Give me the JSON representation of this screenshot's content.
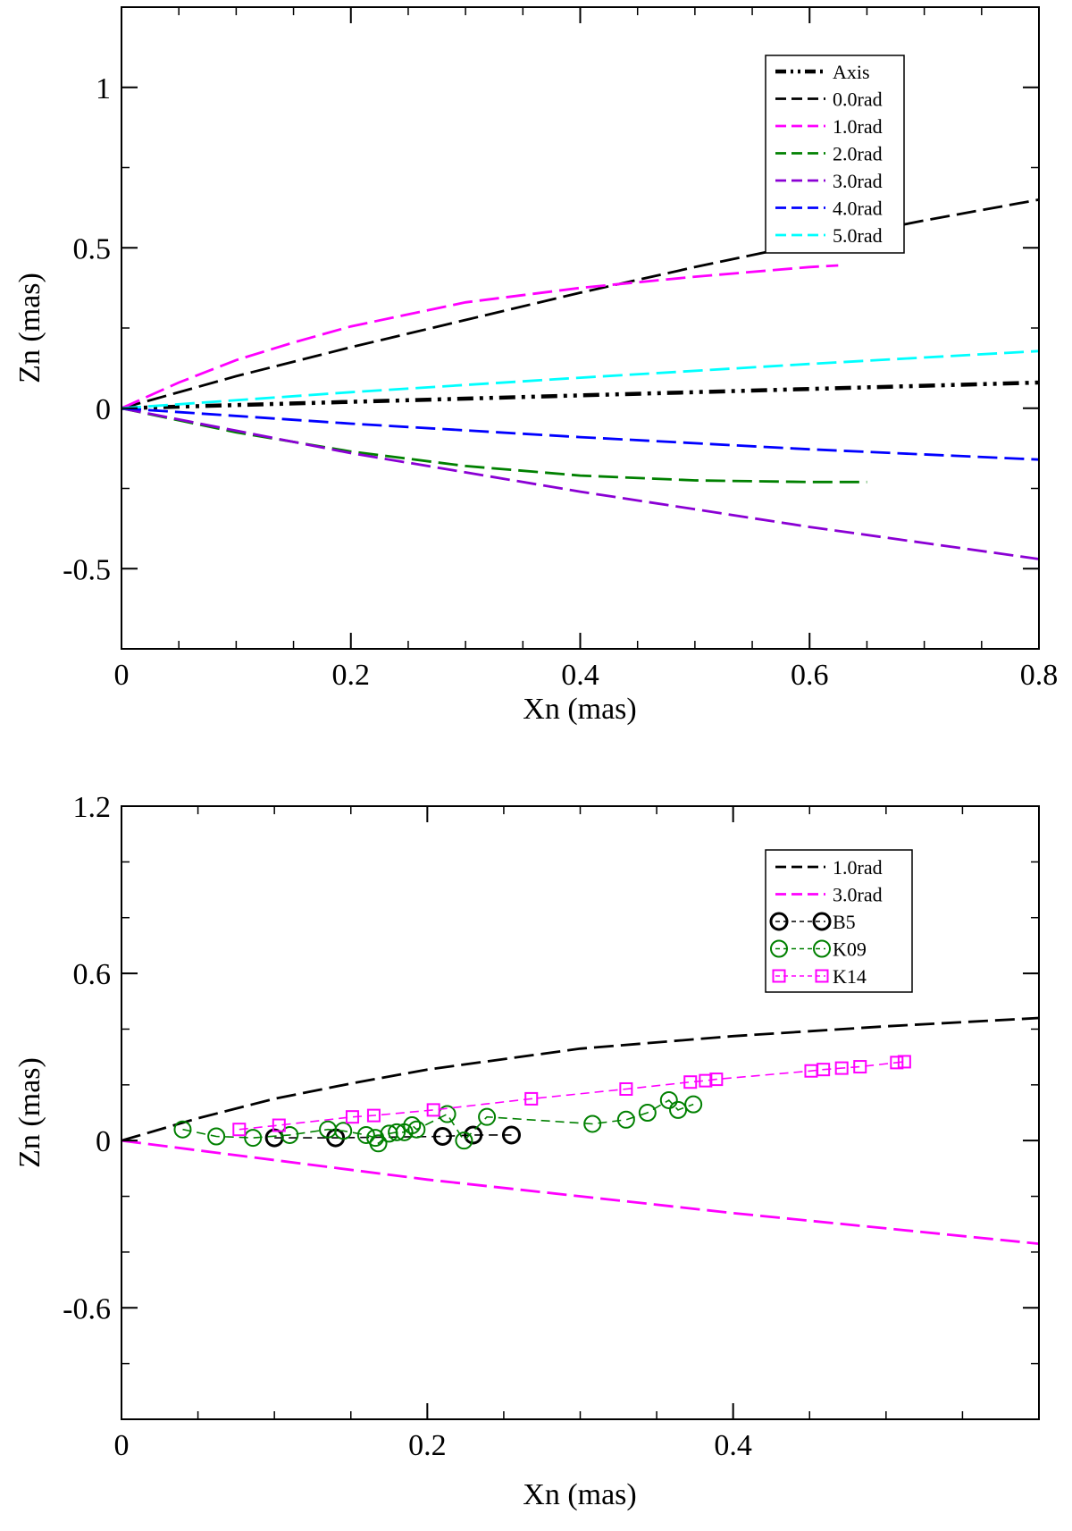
{
  "chart_data": [
    {
      "type": "line",
      "title": "",
      "xlabel": "Xn (mas)",
      "ylabel": "Zn (mas)",
      "xlim": [
        0,
        0.8
      ],
      "ylim": [
        -0.75,
        1.25
      ],
      "xticks": [
        0,
        0.2,
        0.4,
        0.6,
        0.8
      ],
      "xtick_labels": [
        "0",
        "0.2",
        "0.4",
        "0.6",
        "0.8"
      ],
      "yticks": [
        -0.5,
        0,
        0.5,
        1
      ],
      "ytick_labels": [
        "-0.5",
        "0",
        "0.5",
        "1"
      ],
      "x_minor_step": 0.05,
      "y_minor_step": 0.25,
      "legend_position": "top-right",
      "series": [
        {
          "name": "Axis",
          "color": "#000000",
          "style": "dashdotdot",
          "x": [
            0,
            0.1,
            0.2,
            0.3,
            0.4,
            0.5,
            0.6,
            0.7,
            0.8
          ],
          "y": [
            0,
            0.01,
            0.02,
            0.03,
            0.04,
            0.05,
            0.06,
            0.07,
            0.08
          ]
        },
        {
          "name": "0.0rad",
          "color": "#000000",
          "style": "dashed",
          "x": [
            0,
            0.1,
            0.2,
            0.3,
            0.4,
            0.5,
            0.6,
            0.7,
            0.8
          ],
          "y": [
            0,
            0.1,
            0.19,
            0.275,
            0.36,
            0.44,
            0.515,
            0.585,
            0.65
          ]
        },
        {
          "name": "1.0rad",
          "color": "#ff00ff",
          "style": "dashed",
          "x": [
            0,
            0.05,
            0.1,
            0.15,
            0.2,
            0.3,
            0.4,
            0.5,
            0.6,
            0.625
          ],
          "y": [
            0,
            0.08,
            0.15,
            0.205,
            0.255,
            0.33,
            0.375,
            0.41,
            0.44,
            0.445
          ]
        },
        {
          "name": "2.0rad",
          "color": "#008000",
          "style": "dashed",
          "x": [
            0,
            0.1,
            0.2,
            0.3,
            0.4,
            0.5,
            0.6,
            0.65
          ],
          "y": [
            0,
            -0.075,
            -0.135,
            -0.18,
            -0.21,
            -0.225,
            -0.23,
            -0.23
          ]
        },
        {
          "name": "3.0rad",
          "color": "#8a00d4",
          "style": "dashed",
          "x": [
            0,
            0.1,
            0.2,
            0.3,
            0.4,
            0.5,
            0.6,
            0.7,
            0.8
          ],
          "y": [
            0,
            -0.07,
            -0.14,
            -0.2,
            -0.26,
            -0.315,
            -0.37,
            -0.42,
            -0.47
          ]
        },
        {
          "name": "4.0rad",
          "color": "#0000ff",
          "style": "dashed",
          "x": [
            0,
            0.2,
            0.4,
            0.6,
            0.8
          ],
          "y": [
            0,
            -0.048,
            -0.09,
            -0.128,
            -0.16
          ]
        },
        {
          "name": "5.0rad",
          "color": "#00ffff",
          "style": "dashed",
          "x": [
            0,
            0.2,
            0.4,
            0.6,
            0.8
          ],
          "y": [
            0,
            0.05,
            0.095,
            0.138,
            0.178
          ]
        }
      ]
    },
    {
      "type": "line",
      "title": "",
      "xlabel": "Xn (mas)",
      "ylabel": "Zn (mas)",
      "xlim": [
        0,
        0.6
      ],
      "ylim": [
        -1.0,
        1.2
      ],
      "xticks": [
        0,
        0.2,
        0.4
      ],
      "xtick_labels": [
        "0",
        "0.2",
        "0.4"
      ],
      "yticks": [
        -0.6,
        0,
        0.6,
        1.2
      ],
      "ytick_labels": [
        "-0.6",
        "0",
        "0.6",
        "1.2"
      ],
      "x_minor_step": 0.05,
      "y_minor_step": 0.2,
      "legend_position": "top-right",
      "series": [
        {
          "name": "1.0rad",
          "color": "#000000",
          "style": "dashed",
          "marker": "none",
          "x": [
            0,
            0.05,
            0.1,
            0.15,
            0.2,
            0.3,
            0.4,
            0.5,
            0.6
          ],
          "y": [
            0,
            0.08,
            0.15,
            0.205,
            0.255,
            0.33,
            0.375,
            0.41,
            0.44
          ]
        },
        {
          "name": "3.0rad",
          "color": "#ff00ff",
          "style": "dashed",
          "marker": "none",
          "x": [
            0,
            0.1,
            0.2,
            0.3,
            0.4,
            0.5,
            0.6
          ],
          "y": [
            0,
            -0.07,
            -0.14,
            -0.2,
            -0.26,
            -0.315,
            -0.37
          ]
        },
        {
          "name": "B5",
          "color": "#000000",
          "style": "dashed-thin",
          "marker": "circle-bold",
          "x": [
            0.1,
            0.14,
            0.21,
            0.23,
            0.255
          ],
          "y": [
            0.01,
            0.01,
            0.015,
            0.02,
            0.02
          ]
        },
        {
          "name": "K09",
          "color": "#008000",
          "style": "dashed-thin",
          "marker": "circle",
          "x": [
            0.04,
            0.062,
            0.086,
            0.11,
            0.135,
            0.145,
            0.16,
            0.166,
            0.168,
            0.175,
            0.18,
            0.185,
            0.19,
            0.193,
            0.213,
            0.224,
            0.239,
            0.308,
            0.33,
            0.344,
            0.358,
            0.364,
            0.374
          ],
          "y": [
            0.04,
            0.015,
            0.01,
            0.02,
            0.04,
            0.035,
            0.02,
            0.01,
            -0.01,
            0.025,
            0.03,
            0.03,
            0.055,
            0.04,
            0.095,
            0.0,
            0.085,
            0.06,
            0.075,
            0.1,
            0.145,
            0.11,
            0.13
          ]
        },
        {
          "name": "K14",
          "color": "#ff00ff",
          "style": "dashed-thin",
          "marker": "square",
          "x": [
            0.077,
            0.103,
            0.151,
            0.165,
            0.204,
            0.268,
            0.33,
            0.372,
            0.382,
            0.389,
            0.451,
            0.459,
            0.471,
            0.483,
            0.507,
            0.512
          ],
          "y": [
            0.04,
            0.055,
            0.085,
            0.09,
            0.11,
            0.15,
            0.185,
            0.21,
            0.215,
            0.22,
            0.25,
            0.255,
            0.26,
            0.265,
            0.28,
            0.283
          ]
        }
      ]
    }
  ]
}
